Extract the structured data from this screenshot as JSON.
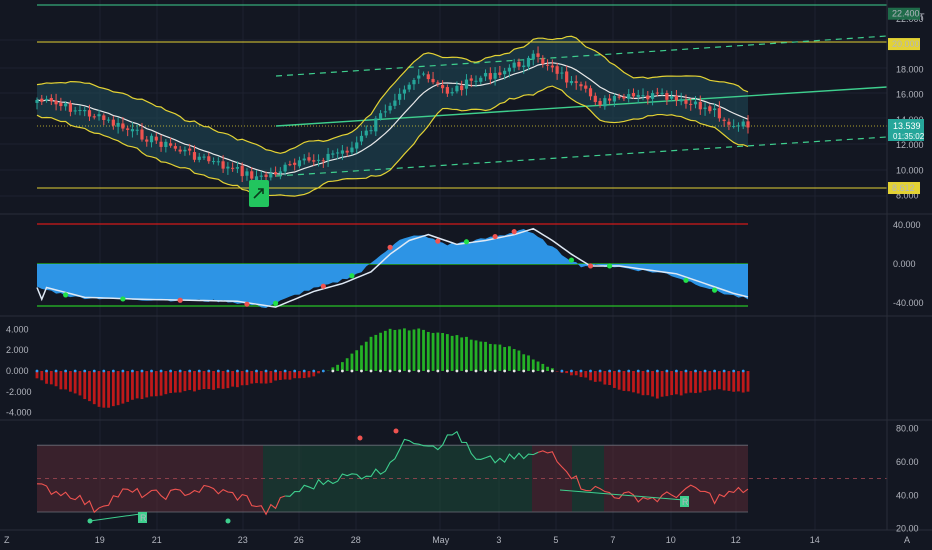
{
  "colors": {
    "background": "#131722",
    "grid": "#1e2230",
    "pane_border": "#2a2e39",
    "bollinger": "#e3d234",
    "basis": "#e8e8e8",
    "level_line": "#e3d234",
    "channel": "#3ecf8e",
    "up_candle": "#26a69a",
    "down_candle": "#ef5350",
    "price_tag": "#26a69a",
    "wave_fill": "#2e9bf0",
    "macd_up": "#27c227",
    "macd_down": "#d11a1a",
    "rsi_line_green": "#3ecf8e",
    "rsi_line_red": "#ef5350"
  },
  "price_pane": {
    "currency": "USDT",
    "axis_ticks": [
      {
        "value": 22,
        "label": "22.000"
      },
      {
        "value": 18,
        "label": "18.000"
      },
      {
        "value": 16,
        "label": "16.000"
      },
      {
        "value": 14,
        "label": "14.000"
      },
      {
        "value": 12,
        "label": "12.000"
      },
      {
        "value": 10,
        "label": "10.000"
      },
      {
        "value": 8,
        "label": "8.000"
      }
    ],
    "levels": [
      {
        "value": 22.4,
        "label": "22.400"
      },
      {
        "value": 20,
        "label": "20.000"
      },
      {
        "value": 8.612,
        "label": "8.612"
      }
    ],
    "last_price": "13.539",
    "countdown": "01:35:02",
    "signal_icon": "arrow-up-icon"
  },
  "oscillator_pane": {
    "axis_ticks": [
      {
        "value": 40,
        "label": "40.000"
      },
      {
        "value": 0,
        "label": "0.000"
      },
      {
        "value": -40,
        "label": "-40.000"
      }
    ]
  },
  "macd_pane": {
    "axis_ticks": [
      {
        "value": 4,
        "label": "4.000"
      },
      {
        "value": 2,
        "label": "2.000"
      },
      {
        "value": 0,
        "label": "0.000"
      },
      {
        "value": -2,
        "label": "-2.000"
      },
      {
        "value": -4,
        "label": "-4.000"
      }
    ]
  },
  "rsi_pane": {
    "axis_ticks": [
      {
        "value": 80,
        "label": "80.00"
      },
      {
        "value": 60,
        "label": "60.00"
      },
      {
        "value": 40,
        "label": "40.00"
      },
      {
        "value": 20,
        "label": "20.00"
      }
    ],
    "divergence_label": "R"
  },
  "time_axis": {
    "ticks": [
      "19",
      "21",
      "23",
      "26",
      "28",
      "May",
      "3",
      "5",
      "7",
      "10",
      "12",
      "14"
    ]
  },
  "footer": {
    "left_icon": "Z",
    "right_icon": "A"
  }
}
